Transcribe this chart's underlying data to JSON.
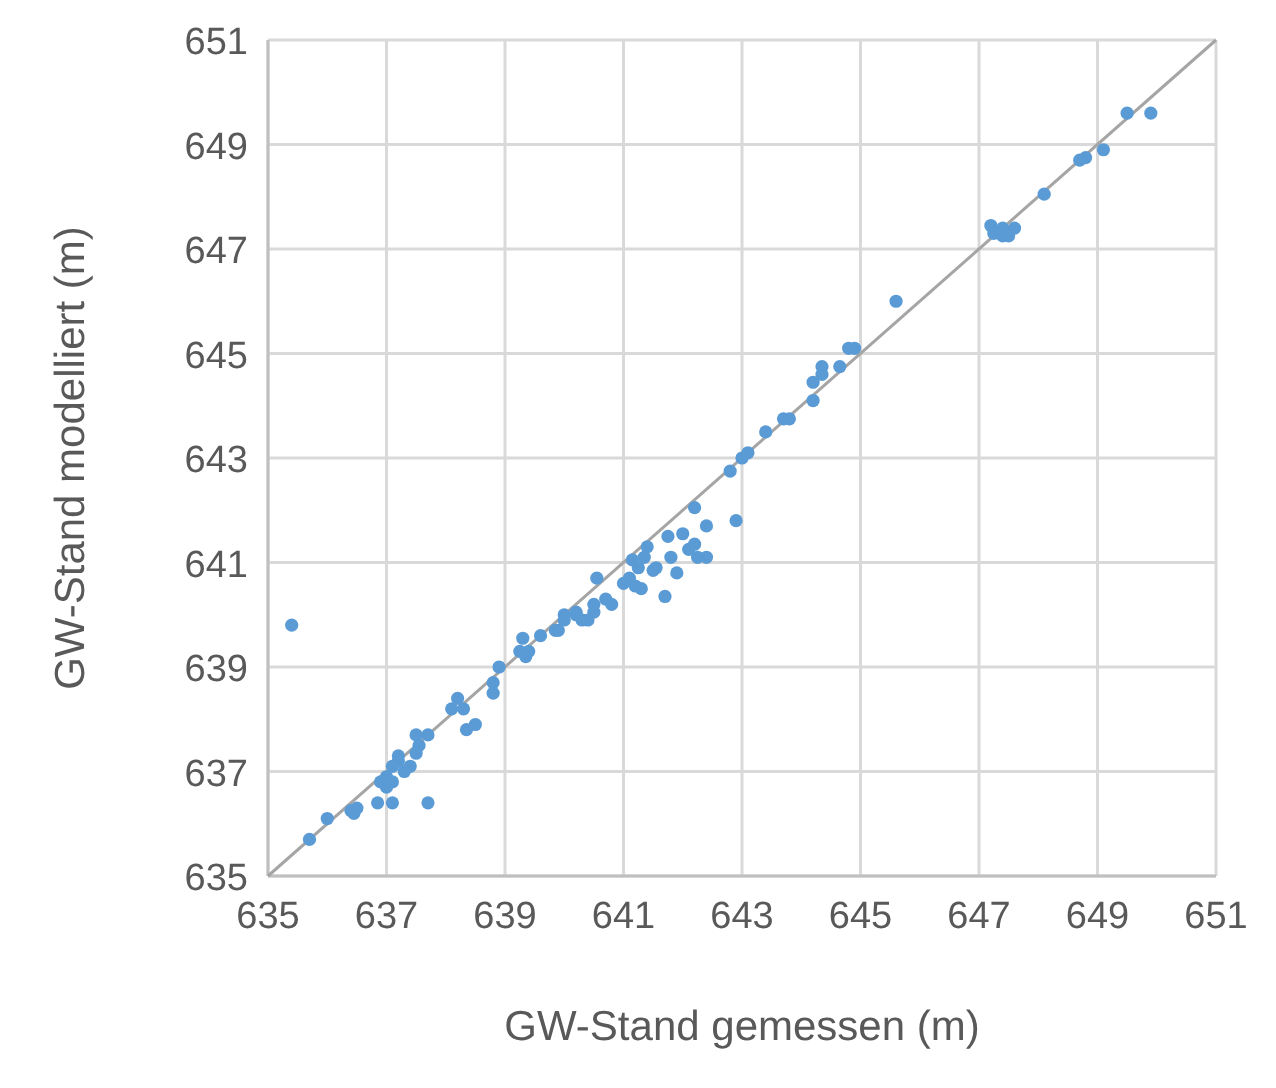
{
  "chart_data": {
    "type": "scatter",
    "xlabel": "GW-Stand gemessen (m)",
    "ylabel": "GW-Stand modelliert (m)",
    "xlim": [
      635,
      651
    ],
    "ylim": [
      635,
      651
    ],
    "xticks": [
      635,
      637,
      639,
      641,
      643,
      645,
      647,
      649,
      651
    ],
    "yticks": [
      635,
      637,
      639,
      641,
      643,
      645,
      647,
      649,
      651
    ],
    "grid": true,
    "marker": "circle",
    "series": [
      {
        "type": "line",
        "color": "#a5a5a5",
        "marker": "none",
        "x": [
          635,
          651
        ],
        "values": [
          635,
          651
        ]
      },
      {
        "color": "#5b9bd5",
        "x": [
          635.4,
          635.7,
          636.0,
          636.4,
          636.5,
          636.45,
          636.85,
          637.1,
          637.7,
          637.0,
          637.1,
          637.2,
          637.3,
          637.0,
          637.4,
          637.1,
          636.9,
          637.2,
          637.5,
          637.7,
          637.55,
          637.5,
          638.2,
          638.1,
          638.3,
          638.35,
          638.5,
          638.8,
          638.8,
          638.9,
          639.3,
          639.35,
          639.25,
          639.4,
          639.6,
          639.85,
          640.0,
          640.2,
          640.3,
          640.5,
          639.9,
          640.0,
          640.2,
          640.4,
          640.5,
          640.7,
          640.8,
          640.55,
          641.0,
          641.1,
          641.2,
          641.3,
          641.15,
          641.25,
          641.35,
          641.4,
          641.5,
          641.55,
          641.7,
          641.75,
          641.8,
          641.9,
          642.0,
          642.1,
          642.2,
          642.25,
          642.4,
          642.4,
          642.2,
          642.9,
          642.8,
          643.0,
          643.1,
          643.4,
          643.7,
          643.8,
          644.2,
          644.2,
          644.35,
          644.35,
          644.65,
          644.8,
          644.9,
          645.6,
          647.25,
          647.4,
          647.5,
          647.6,
          647.4,
          647.2,
          648.1,
          648.7,
          648.8,
          649.1,
          649.5,
          649.9
        ],
        "values": [
          639.8,
          635.7,
          636.1,
          636.25,
          636.3,
          636.2,
          636.4,
          636.4,
          636.4,
          636.9,
          637.1,
          637.2,
          637.0,
          636.7,
          637.1,
          636.8,
          636.8,
          637.3,
          637.7,
          637.7,
          637.5,
          637.35,
          638.4,
          638.2,
          638.2,
          637.8,
          637.9,
          638.7,
          638.5,
          639.0,
          639.55,
          639.2,
          639.3,
          639.3,
          639.6,
          639.7,
          639.9,
          640.0,
          639.9,
          640.05,
          639.7,
          640.0,
          640.05,
          639.9,
          640.2,
          640.3,
          640.2,
          640.7,
          640.6,
          640.7,
          640.55,
          640.5,
          641.05,
          640.9,
          641.1,
          641.3,
          640.85,
          640.9,
          640.35,
          641.5,
          641.1,
          640.8,
          641.55,
          641.25,
          641.35,
          641.1,
          641.1,
          641.7,
          642.05,
          641.8,
          642.75,
          643.0,
          643.1,
          643.5,
          643.75,
          643.75,
          644.1,
          644.45,
          644.6,
          644.75,
          644.75,
          645.1,
          645.1,
          646.0,
          647.3,
          647.25,
          647.25,
          647.4,
          647.4,
          647.45,
          648.05,
          648.7,
          648.75,
          648.9,
          649.6,
          649.6
        ]
      }
    ]
  }
}
